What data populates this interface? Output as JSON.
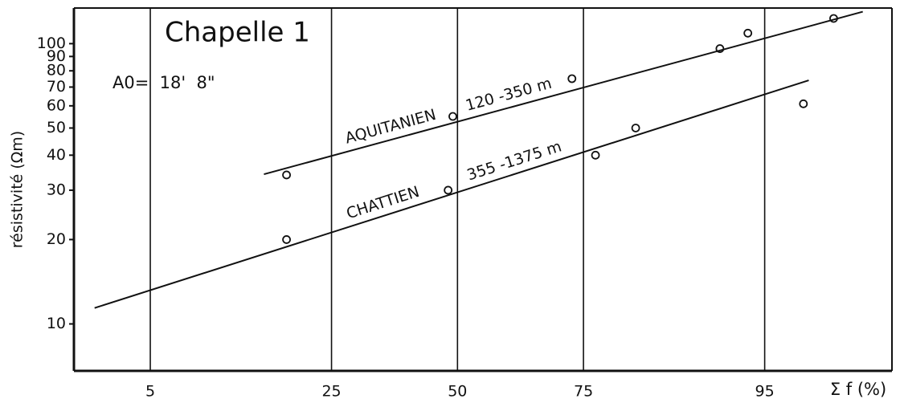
{
  "chart_data": {
    "type": "scatter",
    "title": "Chapelle 1",
    "annotation": "A0=  18'  8\"",
    "ylabel": "résistivité (Ωm)",
    "xlabel": "Σ f (%)",
    "xscale": "probability",
    "yscale": "log",
    "xlim": [
      2,
      99
    ],
    "ylim": [
      6.8,
      134
    ],
    "xticks": [
      5,
      25,
      50,
      75,
      95
    ],
    "yticks": [
      10,
      20,
      30,
      40,
      50,
      60,
      70,
      80,
      90,
      100
    ],
    "grid": "x",
    "color": "#111111",
    "series": [
      {
        "name": "AQUITANIEN",
        "depth": "120 -350 m",
        "x": [
          18,
          49,
          73,
          92,
          94,
          97.8
        ],
        "values": [
          34,
          55,
          75,
          96,
          109,
          123
        ],
        "fit": {
          "x": [
            15,
            98.5
          ],
          "values": [
            34.2,
            130
          ]
        }
      },
      {
        "name": "CHATTIEN",
        "depth": "355 -1375 m",
        "x": [
          18,
          48,
          77,
          83,
          96.8
        ],
        "values": [
          20,
          30,
          40,
          50,
          61
        ],
        "fit": {
          "x": [
            2.6,
            97
          ],
          "values": [
            11.4,
            74
          ]
        }
      }
    ]
  }
}
